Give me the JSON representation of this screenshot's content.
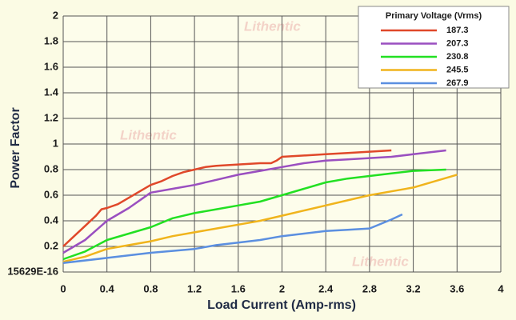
{
  "chart_data": {
    "type": "line",
    "watermark": "Lithentic",
    "xlabel": "Load Current (Amp-rms)",
    "ylabel": "Power Factor",
    "xlim": [
      0,
      4
    ],
    "ylim": [
      0,
      2
    ],
    "xticks": [
      0,
      0.4,
      0.8,
      1.2,
      1.6,
      2,
      2.4,
      2.8,
      3.2,
      3.6,
      4
    ],
    "yticks": [
      {
        "value": 0,
        "label": "15629E-16"
      },
      0.2,
      0.4,
      0.6,
      0.8,
      1,
      1.2,
      1.4,
      1.6,
      1.8,
      2
    ],
    "grid": true,
    "legend_title": "Primary Voltage (Vrms)",
    "legend_position": "top-right",
    "series": [
      {
        "name": "187.3",
        "color": "#e0482a",
        "x": [
          0,
          0.1,
          0.2,
          0.3,
          0.35,
          0.4,
          0.5,
          0.6,
          0.7,
          0.8,
          0.9,
          1.0,
          1.1,
          1.2,
          1.3,
          1.4,
          1.6,
          1.8,
          1.9,
          1.95,
          2.0,
          2.2,
          2.4,
          2.6,
          2.8,
          3.0
        ],
        "values": [
          0.2,
          0.28,
          0.36,
          0.44,
          0.49,
          0.5,
          0.53,
          0.58,
          0.63,
          0.68,
          0.71,
          0.75,
          0.78,
          0.8,
          0.82,
          0.83,
          0.84,
          0.85,
          0.85,
          0.87,
          0.9,
          0.91,
          0.92,
          0.93,
          0.94,
          0.95
        ]
      },
      {
        "name": "207.3",
        "color": "#9a4fc0",
        "x": [
          0,
          0.2,
          0.4,
          0.6,
          0.8,
          1.0,
          1.2,
          1.4,
          1.6,
          1.8,
          2.0,
          2.2,
          2.4,
          2.6,
          2.8,
          3.0,
          3.2,
          3.5
        ],
        "values": [
          0.15,
          0.25,
          0.4,
          0.5,
          0.62,
          0.65,
          0.68,
          0.72,
          0.76,
          0.79,
          0.82,
          0.85,
          0.87,
          0.88,
          0.89,
          0.9,
          0.92,
          0.95
        ]
      },
      {
        "name": "230.8",
        "color": "#22e022",
        "x": [
          0,
          0.2,
          0.4,
          0.6,
          0.8,
          1.0,
          1.2,
          1.4,
          1.6,
          1.8,
          2.0,
          2.2,
          2.4,
          2.6,
          2.8,
          3.0,
          3.2,
          3.5
        ],
        "values": [
          0.1,
          0.16,
          0.25,
          0.3,
          0.35,
          0.42,
          0.46,
          0.49,
          0.52,
          0.55,
          0.6,
          0.65,
          0.7,
          0.73,
          0.75,
          0.77,
          0.79,
          0.8
        ]
      },
      {
        "name": "245.5",
        "color": "#f0b41c",
        "x": [
          0,
          0.2,
          0.4,
          0.6,
          0.8,
          1.0,
          1.2,
          1.4,
          1.6,
          1.8,
          2.0,
          2.2,
          2.4,
          2.6,
          2.8,
          3.0,
          3.2,
          3.6
        ],
        "values": [
          0.08,
          0.12,
          0.18,
          0.21,
          0.24,
          0.28,
          0.31,
          0.34,
          0.37,
          0.4,
          0.44,
          0.48,
          0.52,
          0.56,
          0.6,
          0.63,
          0.66,
          0.76
        ]
      },
      {
        "name": "267.9",
        "color": "#5b8fe0",
        "x": [
          0,
          0.4,
          0.8,
          1.2,
          1.4,
          1.6,
          1.8,
          2.0,
          2.2,
          2.4,
          2.6,
          2.8,
          3.0,
          3.1
        ],
        "values": [
          0.07,
          0.11,
          0.15,
          0.18,
          0.21,
          0.23,
          0.25,
          0.28,
          0.3,
          0.32,
          0.33,
          0.34,
          0.41,
          0.45
        ]
      }
    ]
  }
}
